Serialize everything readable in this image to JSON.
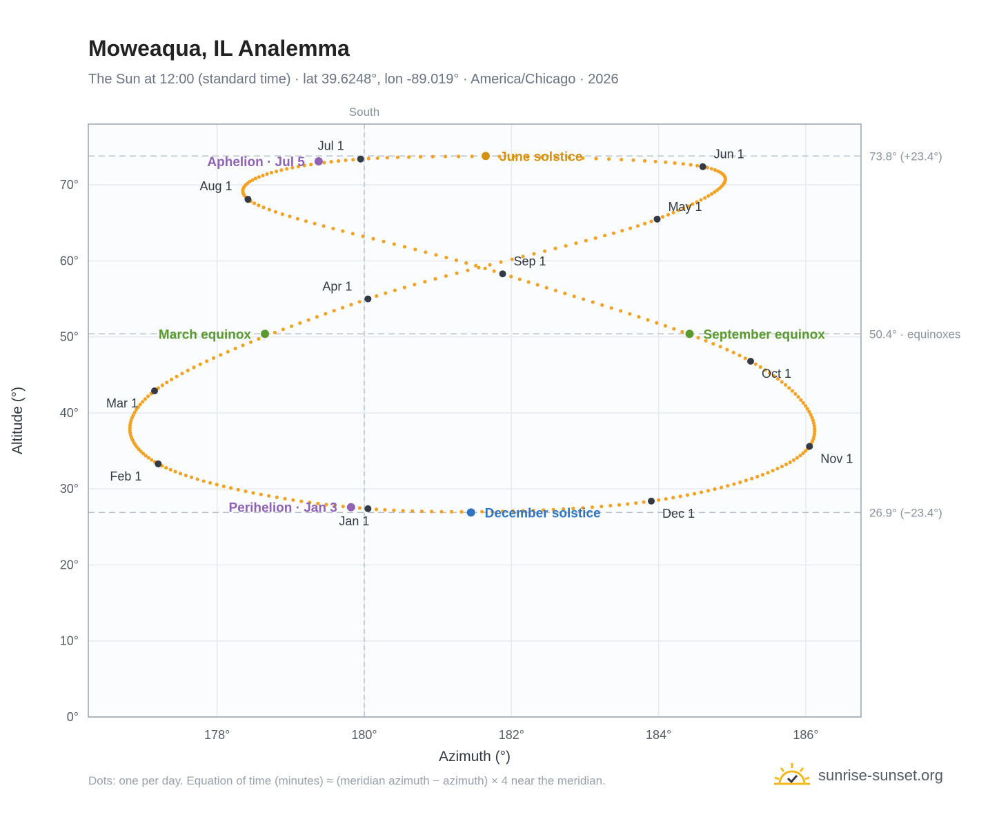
{
  "title": "Moweaqua, IL Analemma",
  "subtitle": "The Sun at 12:00 (standard time) · lat 39.6248°, lon -89.019° · America/Chicago · 2026",
  "footnote": "Dots: one per day. Equation of time (minutes) ≈ (meridian azimuth − azimuth) × 4 near the meridian.",
  "brand": {
    "text": "sunrise-sunset.org",
    "icon": "sun-icon",
    "color": "#f2b81d"
  },
  "chart_data": {
    "type": "scatter",
    "xlabel": "Azimuth (°)",
    "ylabel": "Altitude (°)",
    "xlim": [
      176.25,
      186.75
    ],
    "ylim": [
      0,
      78
    ],
    "x_ticks": [
      178,
      180,
      182,
      184,
      186
    ],
    "x_tick_labels": [
      "178°",
      "180°",
      "182°",
      "184°",
      "186°"
    ],
    "y_ticks": [
      0,
      10,
      20,
      30,
      40,
      50,
      60,
      70
    ],
    "y_tick_labels": [
      "0°",
      "10°",
      "20°",
      "30°",
      "40°",
      "50°",
      "60°",
      "70°"
    ],
    "grid": true,
    "meridian": {
      "x": 180,
      "label": "South"
    },
    "reference_lines": [
      {
        "y": 73.8,
        "label": "73.8° (+23.4°)"
      },
      {
        "y": 50.4,
        "label": "50.4° · equinoxes"
      },
      {
        "y": 26.9,
        "label": "26.9° (−23.4°)"
      }
    ],
    "colors": {
      "daily": "#f2a325",
      "month": "#333a44",
      "solstice_june": "#d4920e",
      "solstice_december": "#2f74c0",
      "equinox": "#5a9a2e",
      "apsis": "#8e63b5"
    },
    "months": [
      {
        "label": "Jan 1",
        "x": 180.05,
        "y": 27.4
      },
      {
        "label": "Feb 1",
        "x": 177.2,
        "y": 33.3
      },
      {
        "label": "Mar 1",
        "x": 177.15,
        "y": 42.9
      },
      {
        "label": "Apr 1",
        "x": 180.05,
        "y": 55.0
      },
      {
        "label": "May 1",
        "x": 183.98,
        "y": 65.5
      },
      {
        "label": "Jun 1",
        "x": 184.6,
        "y": 72.4
      },
      {
        "label": "Jul 1",
        "x": 179.95,
        "y": 73.4
      },
      {
        "label": "Aug 1",
        "x": 178.42,
        "y": 68.1
      },
      {
        "label": "Sep 1",
        "x": 181.88,
        "y": 58.3
      },
      {
        "label": "Oct 1",
        "x": 185.25,
        "y": 46.8
      },
      {
        "label": "Nov 1",
        "x": 186.05,
        "y": 35.6
      },
      {
        "label": "Dec 1",
        "x": 183.9,
        "y": 28.4
      }
    ],
    "events": [
      {
        "label": "June solstice",
        "x": 181.65,
        "y": 73.8,
        "kind": "solstice_june"
      },
      {
        "label": "December solstice",
        "x": 181.45,
        "y": 26.9,
        "kind": "solstice_december"
      },
      {
        "label": "March equinox",
        "x": 178.65,
        "y": 50.4,
        "kind": "equinox"
      },
      {
        "label": "September equinox",
        "x": 184.42,
        "y": 50.4,
        "kind": "equinox"
      },
      {
        "label": "Aphelion · Jul 5",
        "x": 179.38,
        "y": 73.1,
        "kind": "apsis"
      },
      {
        "label": "Perihelion · Jan 3",
        "x": 179.82,
        "y": 27.6,
        "kind": "apsis"
      }
    ],
    "daily_points": {
      "count": 365
    }
  }
}
